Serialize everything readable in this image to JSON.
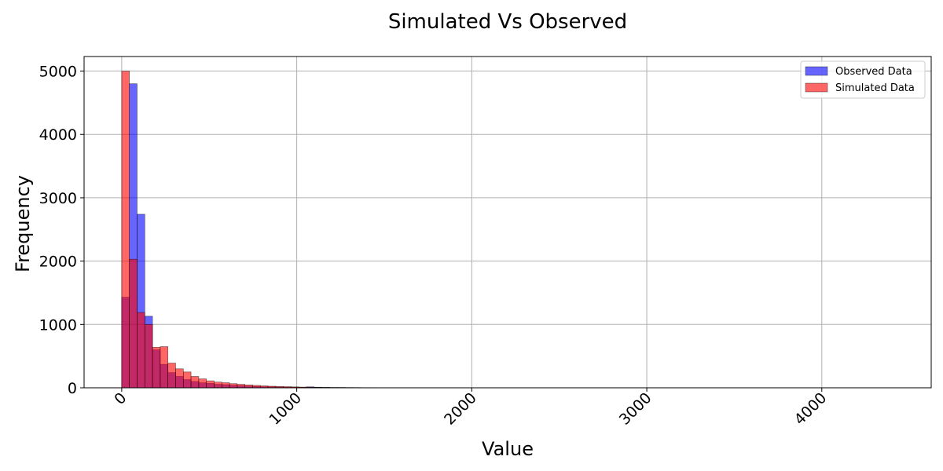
{
  "chart_data": {
    "type": "bar",
    "title": "Simulated Vs Observed",
    "xlabel": "Value",
    "ylabel": "Frequency",
    "xlim": [
      -215,
      4625
    ],
    "ylim": [
      0,
      5230
    ],
    "xticks": [
      0,
      1000,
      2000,
      3000,
      4000
    ],
    "yticks": [
      0,
      1000,
      2000,
      3000,
      4000,
      5000
    ],
    "grid": true,
    "legend_position": "top-right",
    "bin_width": 44,
    "bin_start": 0,
    "series": [
      {
        "name": "Observed Data",
        "color": "#0000ff",
        "values": [
          1430,
          4800,
          2740,
          1130,
          600,
          370,
          240,
          180,
          130,
          100,
          80,
          70,
          55,
          50,
          40,
          35,
          28,
          22,
          18,
          15,
          12,
          10,
          8,
          8,
          15,
          10,
          8,
          6,
          6,
          5,
          4,
          3,
          3,
          2,
          2,
          2,
          2,
          1,
          1,
          1,
          1,
          1,
          1,
          1,
          1,
          1,
          1,
          1,
          1,
          1,
          1,
          1,
          1,
          1,
          1,
          1,
          1,
          1,
          1,
          1,
          1,
          1,
          1,
          1,
          1,
          1,
          1,
          1,
          1,
          1,
          1,
          1,
          1,
          1,
          1,
          1,
          1,
          1,
          1,
          1,
          1,
          1,
          1,
          1,
          1,
          1,
          1,
          1,
          1,
          1,
          1,
          1,
          1,
          1,
          1,
          1,
          1,
          1,
          1,
          1
        ]
      },
      {
        "name": "Simulated Data",
        "color": "#ff0000",
        "values": [
          5000,
          2030,
          1190,
          1000,
          640,
          650,
          390,
          300,
          250,
          180,
          140,
          110,
          90,
          80,
          65,
          55,
          45,
          38,
          30,
          25,
          22,
          18,
          15,
          12,
          10,
          8,
          6,
          5,
          4,
          3,
          3,
          2,
          2,
          1,
          1,
          1,
          1,
          0,
          0,
          0,
          0,
          0,
          0,
          0,
          0,
          0,
          0,
          0,
          0,
          0,
          0,
          0,
          0,
          0,
          0,
          0,
          0,
          0,
          0,
          0,
          0,
          0,
          0,
          0,
          0,
          0,
          0,
          0,
          0,
          0,
          0,
          0,
          0,
          0,
          0,
          0,
          0,
          0,
          0,
          0,
          0,
          0,
          0,
          0,
          0,
          0,
          0,
          0,
          0,
          0,
          0,
          0,
          0,
          0,
          0,
          0,
          0,
          0,
          0,
          0
        ]
      }
    ]
  }
}
